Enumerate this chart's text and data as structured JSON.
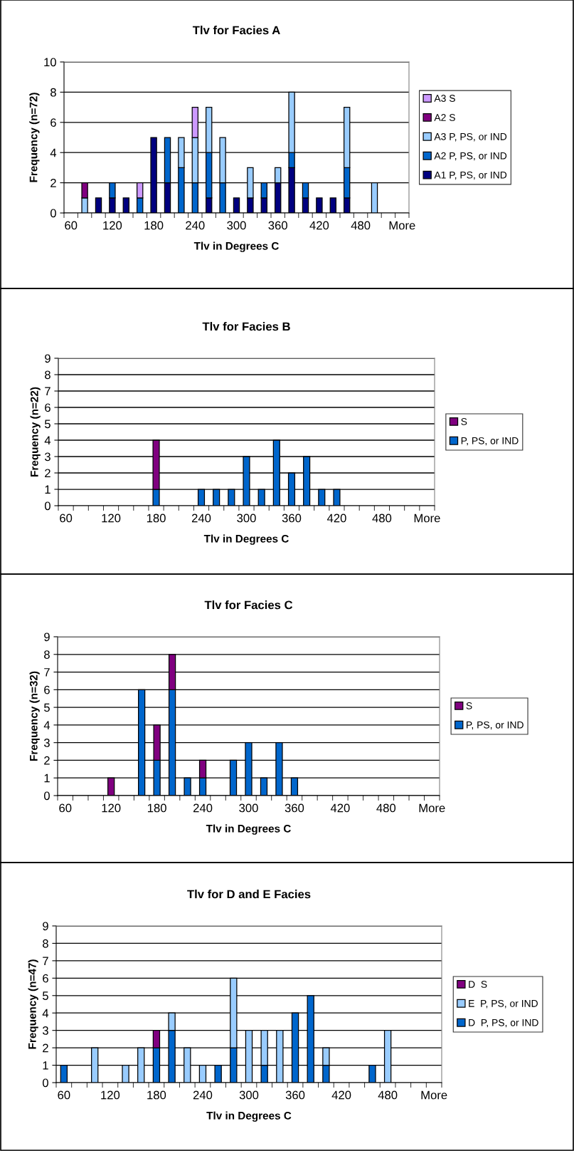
{
  "chart_data": [
    {
      "type": "bar",
      "stacked": true,
      "title": "Tlv for Facies A",
      "xlabel": "Tlv in Degrees C",
      "ylabel": "Frequency (n=72)",
      "categories": [
        "60",
        null,
        null,
        "120",
        null,
        null,
        "180",
        null,
        null,
        "240",
        null,
        null,
        "300",
        null,
        null,
        "360",
        null,
        null,
        "420",
        null,
        null,
        "480",
        null,
        null,
        "More"
      ],
      "ylim": [
        0,
        10
      ],
      "yticks": [
        0,
        2,
        4,
        6,
        8,
        10
      ],
      "grid": "y",
      "legend": "right",
      "series": [
        {
          "name": "A1 P, PS, or IND",
          "color": "#000080",
          "values": [
            0,
            0,
            1,
            1,
            1,
            0,
            5,
            2,
            0,
            0,
            1,
            0,
            1,
            1,
            1,
            2,
            3,
            1,
            1,
            1,
            1,
            0,
            0,
            0,
            0
          ]
        },
        {
          "name": "A2 P, PS, or IND",
          "color": "#0066cc",
          "values": [
            0,
            0,
            0,
            1,
            0,
            1,
            0,
            3,
            3,
            2,
            3,
            2,
            0,
            0,
            1,
            0,
            1,
            1,
            0,
            0,
            2,
            0,
            0,
            0,
            0
          ]
        },
        {
          "name": "A3 P, PS, or IND",
          "color": "#99ccff",
          "values": [
            0,
            1,
            0,
            0,
            0,
            0,
            0,
            0,
            2,
            3,
            3,
            3,
            0,
            2,
            0,
            1,
            4,
            0,
            0,
            0,
            4,
            0,
            2,
            0,
            0
          ]
        },
        {
          "name": "A2 S",
          "color": "#800080",
          "values": [
            0,
            1,
            0,
            0,
            0,
            0,
            0,
            0,
            0,
            0,
            0,
            0,
            0,
            0,
            0,
            0,
            0,
            0,
            0,
            0,
            0,
            0,
            0,
            0,
            0
          ]
        },
        {
          "name": "A3 S",
          "color": "#cc99ff",
          "values": [
            0,
            0,
            0,
            0,
            0,
            1,
            0,
            0,
            0,
            2,
            0,
            0,
            0,
            0,
            0,
            0,
            0,
            0,
            0,
            0,
            0,
            0,
            0,
            0,
            0
          ]
        }
      ]
    },
    {
      "type": "bar",
      "stacked": true,
      "title": "Tlv for Facies B",
      "xlabel": "Tlv in Degrees C",
      "ylabel": "Frequency (n=22)",
      "categories": [
        "60",
        null,
        null,
        "120",
        null,
        null,
        "180",
        null,
        null,
        "240",
        null,
        null,
        "300",
        null,
        null,
        "360",
        null,
        null,
        "420",
        null,
        null,
        "480",
        null,
        null,
        "More"
      ],
      "ylim": [
        0,
        9
      ],
      "yticks": [
        0,
        1,
        2,
        3,
        4,
        5,
        6,
        7,
        8,
        9
      ],
      "grid": "y",
      "legend": "right",
      "series": [
        {
          "name": "P, PS, or IND",
          "color": "#0066cc",
          "values": [
            0,
            0,
            0,
            0,
            0,
            0,
            1,
            0,
            0,
            1,
            1,
            1,
            3,
            1,
            4,
            2,
            3,
            1,
            1,
            0,
            0,
            0,
            0,
            0,
            0
          ]
        },
        {
          "name": "S",
          "color": "#800080",
          "values": [
            0,
            0,
            0,
            0,
            0,
            0,
            3,
            0,
            0,
            0,
            0,
            0,
            0,
            0,
            0,
            0,
            0,
            0,
            0,
            0,
            0,
            0,
            0,
            0,
            0
          ]
        }
      ]
    },
    {
      "type": "bar",
      "stacked": true,
      "title": "Tlv for Facies C",
      "xlabel": "Tlv in Degrees C",
      "ylabel": "Frequency (n=32)",
      "categories": [
        "60",
        null,
        null,
        "120",
        null,
        null,
        "180",
        null,
        null,
        "240",
        null,
        null,
        "300",
        null,
        null,
        "360",
        null,
        null,
        "420",
        null,
        null,
        "480",
        null,
        null,
        "More"
      ],
      "ylim": [
        0,
        9
      ],
      "yticks": [
        0,
        1,
        2,
        3,
        4,
        5,
        6,
        7,
        8,
        9
      ],
      "grid": "y",
      "legend": "right",
      "series": [
        {
          "name": "P, PS, or IND",
          "color": "#0066cc",
          "values": [
            0,
            0,
            0,
            0,
            0,
            6,
            2,
            6,
            1,
            1,
            0,
            2,
            3,
            1,
            3,
            1,
            0,
            0,
            0,
            0,
            0,
            0,
            0,
            0,
            0
          ]
        },
        {
          "name": "S",
          "color": "#800080",
          "values": [
            0,
            0,
            0,
            1,
            0,
            0,
            2,
            2,
            0,
            1,
            0,
            0,
            0,
            0,
            0,
            0,
            0,
            0,
            0,
            0,
            0,
            0,
            0,
            0,
            0
          ]
        }
      ]
    },
    {
      "type": "bar",
      "stacked": true,
      "title": "Tlv for D and E Facies",
      "xlabel": "Tlv in Degrees C",
      "ylabel": "Frequency (n=47)",
      "categories": [
        "60",
        null,
        null,
        "120",
        null,
        null,
        "180",
        null,
        null,
        "240",
        null,
        null,
        "300",
        null,
        null,
        "360",
        null,
        null,
        "420",
        null,
        null,
        "480",
        null,
        null,
        "More"
      ],
      "ylim": [
        0,
        9
      ],
      "yticks": [
        0,
        1,
        2,
        3,
        4,
        5,
        6,
        7,
        8,
        9
      ],
      "grid": "y",
      "legend": "right",
      "series": [
        {
          "name": "D  P, PS, or IND",
          "color": "#0066cc",
          "values": [
            1,
            0,
            0,
            0,
            0,
            0,
            2,
            3,
            0,
            0,
            1,
            2,
            0,
            1,
            0,
            4,
            5,
            1,
            0,
            0,
            1,
            0,
            0,
            0,
            0
          ]
        },
        {
          "name": "E  P, PS, or IND",
          "color": "#99ccff",
          "values": [
            0,
            0,
            2,
            0,
            1,
            2,
            0,
            1,
            2,
            1,
            0,
            4,
            3,
            2,
            3,
            0,
            0,
            1,
            0,
            0,
            0,
            3,
            0,
            0,
            0
          ]
        },
        {
          "name": "D  S",
          "color": "#800080",
          "values": [
            0,
            0,
            0,
            0,
            0,
            0,
            1,
            0,
            0,
            0,
            0,
            0,
            0,
            0,
            0,
            0,
            0,
            0,
            0,
            0,
            0,
            0,
            0,
            0,
            0
          ]
        }
      ]
    }
  ]
}
